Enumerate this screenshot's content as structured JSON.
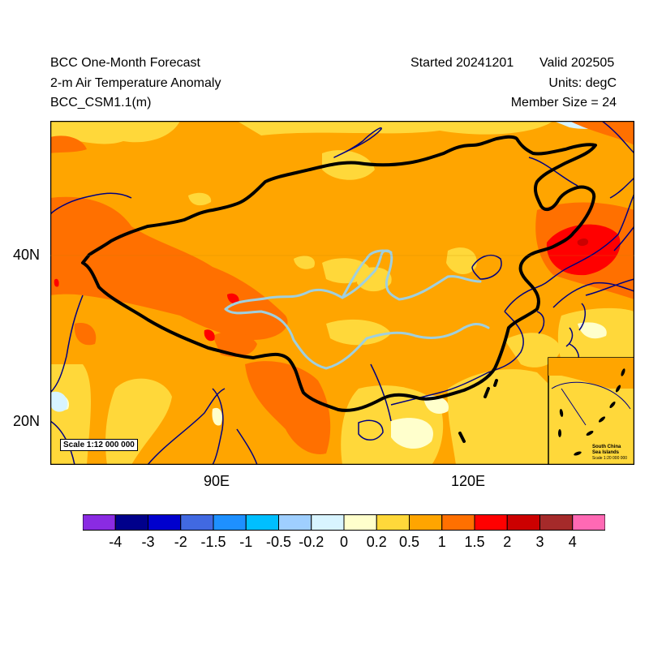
{
  "header": {
    "title_line1": "BCC One-Month Forecast",
    "title_line2": "2-m Air Temperature Anomaly",
    "title_line3": "BCC_CSM1.1(m)",
    "started": "Started 20241201",
    "valid": "Valid 202505",
    "units": "Units: degC",
    "member_size": "Member Size = 24"
  },
  "map": {
    "lat_labels": [
      "40N",
      "20N"
    ],
    "lon_labels": [
      "90E",
      "120E"
    ],
    "scale_label": "Scale 1:12 000 000",
    "inset_title_1": "South China",
    "inset_title_2": "Sea Islands",
    "inset_scale": "Scale 1:20 000 000"
  },
  "colorbar": {
    "labels": [
      "-4",
      "-3",
      "-2",
      "-1.5",
      "-1",
      "-0.5",
      "-0.2",
      "0",
      "0.2",
      "0.5",
      "1",
      "1.5",
      "2",
      "3",
      "4"
    ],
    "colors": [
      "#8a2be2",
      "#00008b",
      "#0000cd",
      "#4169e1",
      "#1e90ff",
      "#00bfff",
      "#9fcfff",
      "#d8f4ff",
      "#ffffcc",
      "#ffd83a",
      "#ffa500",
      "#ff7000",
      "#ff0000",
      "#cc0000",
      "#a52a2a",
      "#ff69b4"
    ]
  },
  "palette": {
    "ocean_bg": "#ffa500",
    "border": "#000000",
    "coast": "#000080",
    "river": "#9fcfdf"
  }
}
